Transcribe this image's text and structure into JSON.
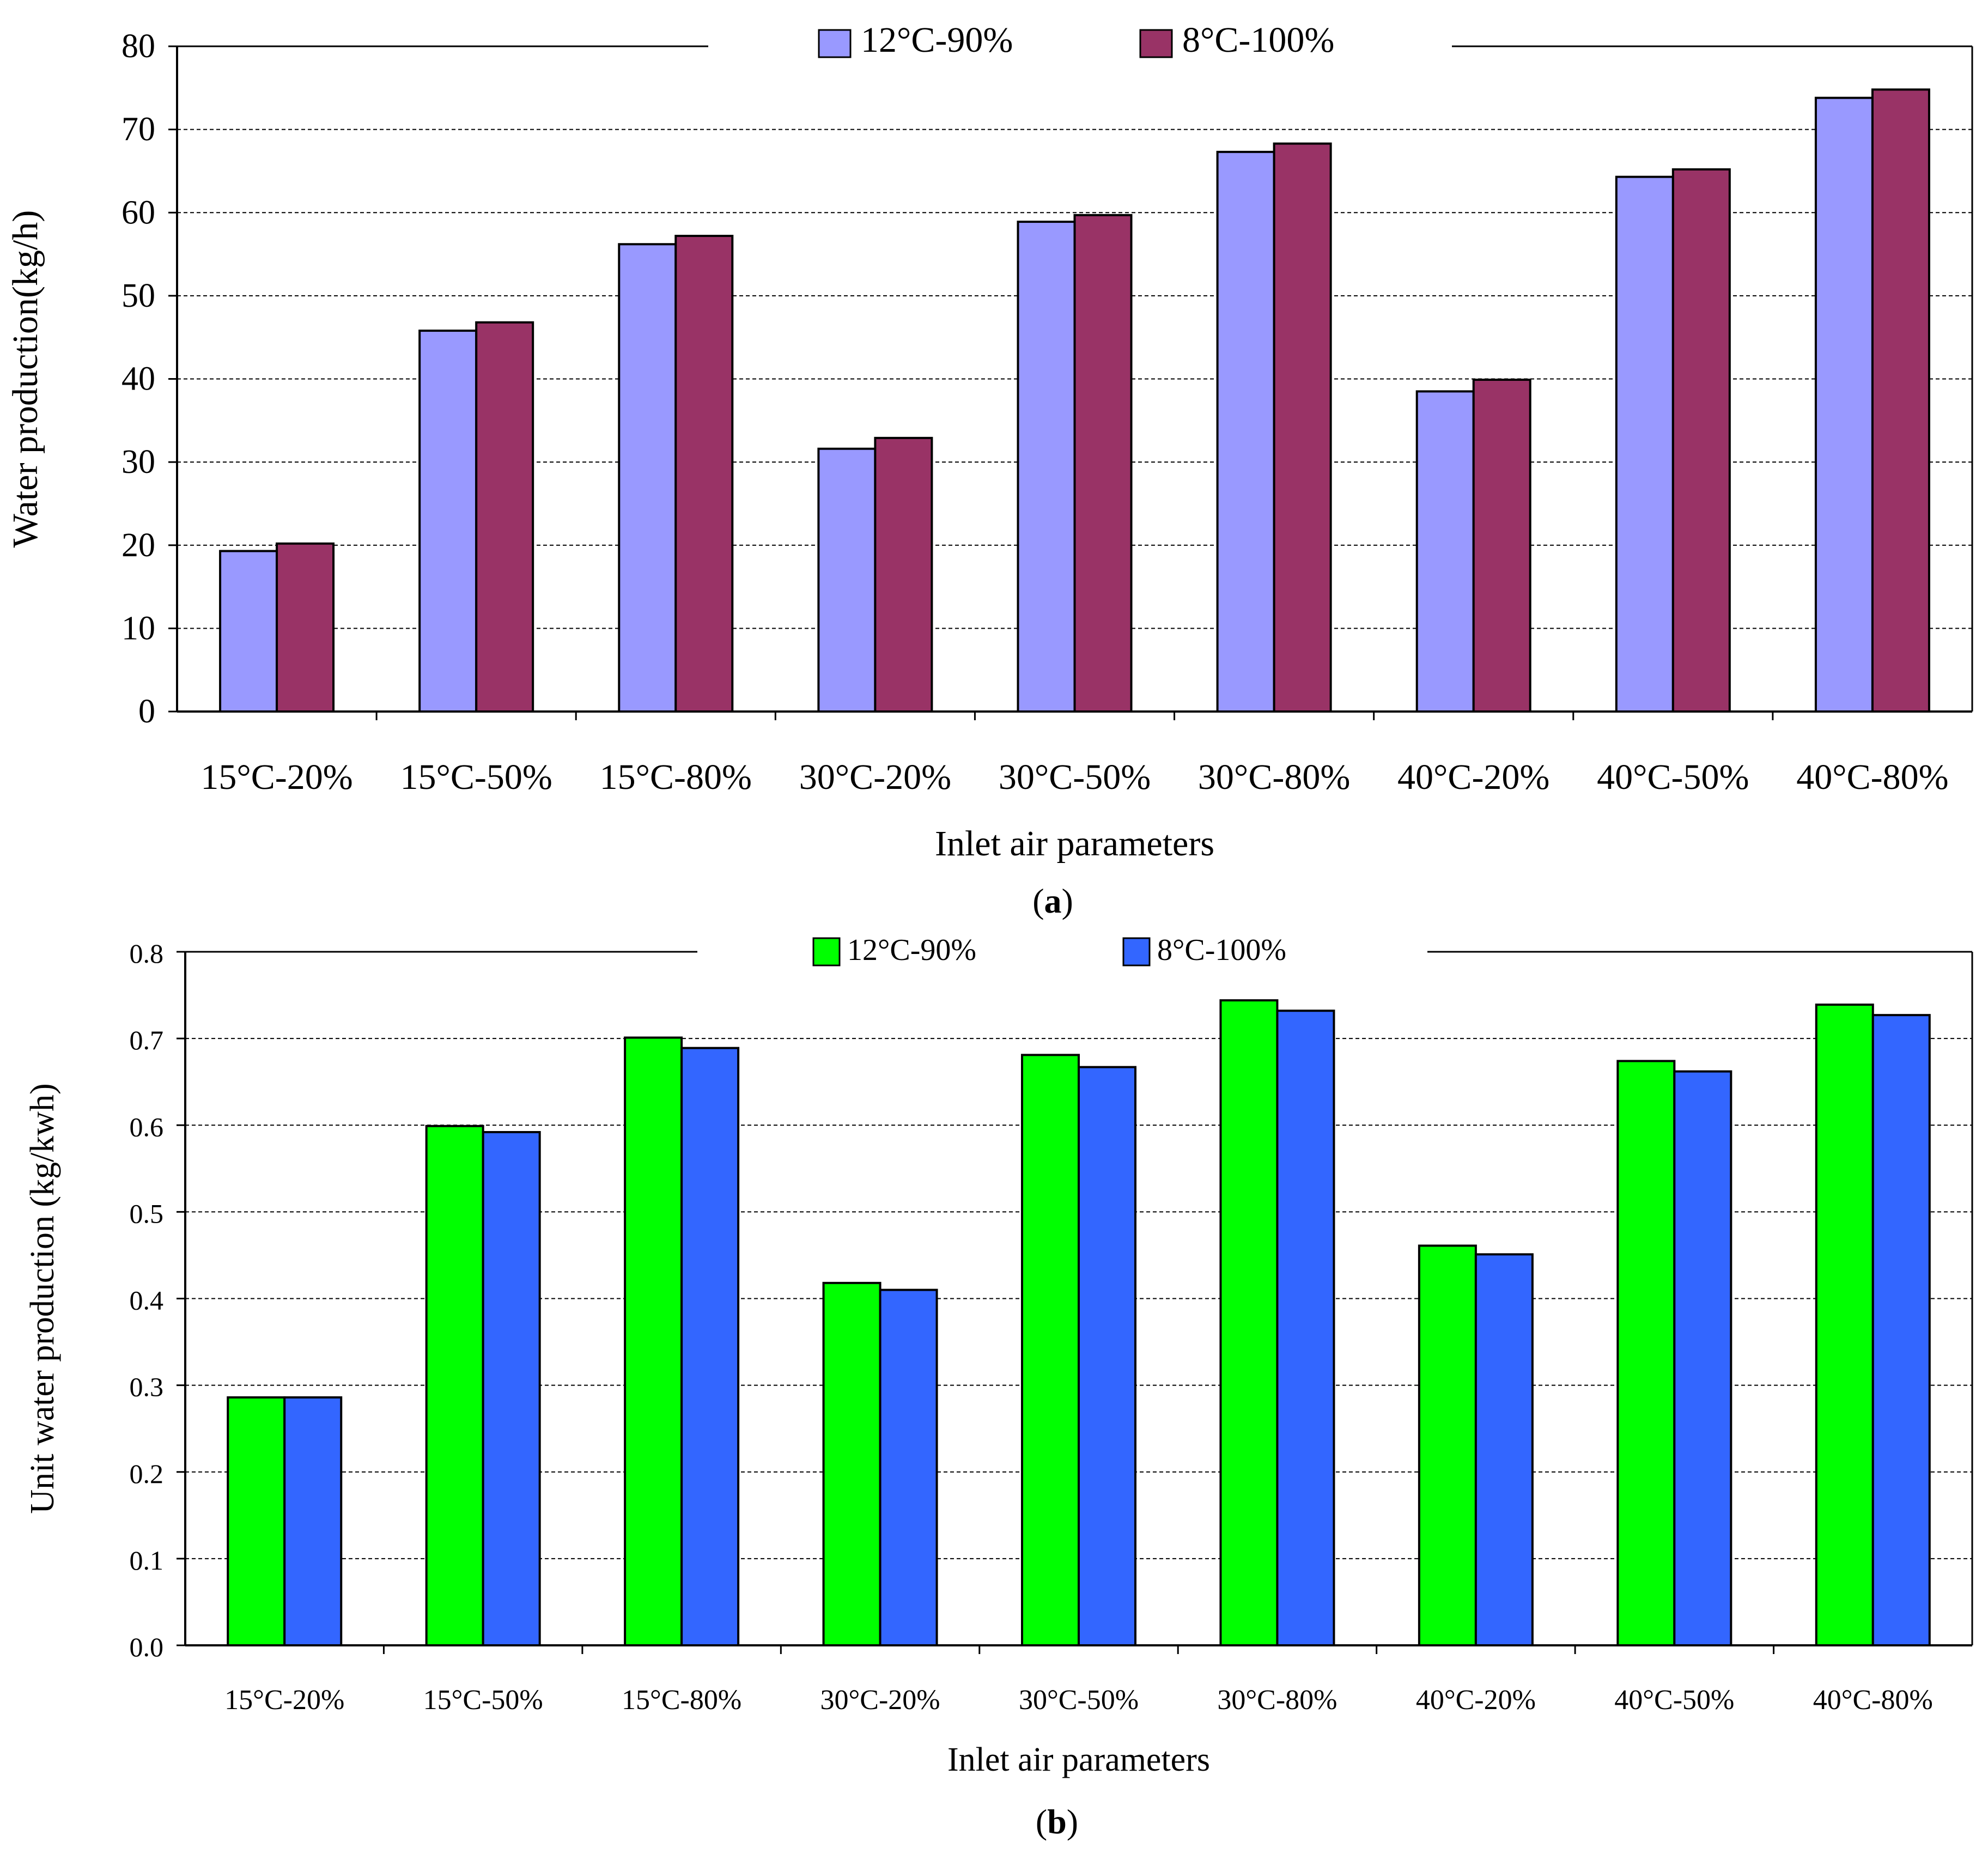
{
  "chart_data": [
    {
      "type": "bar",
      "panel_label": "(a)",
      "panel_letter": "a",
      "categories": [
        "15°C-20%",
        "15°C-50%",
        "15°C-80%",
        "30°C-20%",
        "30°C-50%",
        "30°C-80%",
        "40°C-20%",
        "40°C-50%",
        "40°C-80%"
      ],
      "series": [
        {
          "name": "12°C-90%",
          "color": "#9999ff",
          "values": [
            19.3,
            45.8,
            56.2,
            31.6,
            58.9,
            67.3,
            38.5,
            64.3,
            73.8
          ]
        },
        {
          "name": "8°C-100%",
          "color": "#993366",
          "values": [
            20.2,
            46.8,
            57.2,
            32.9,
            59.7,
            68.3,
            39.9,
            65.2,
            74.8
          ]
        }
      ],
      "xlabel": "Inlet air parameters",
      "ylabel": "Water production(kg/h)",
      "ylim": [
        0,
        80
      ],
      "yticks": [
        "0",
        "10",
        "20",
        "30",
        "40",
        "50",
        "60",
        "70",
        "80"
      ],
      "grid": true,
      "legend_position": "top-center"
    },
    {
      "type": "bar",
      "panel_label": "(b)",
      "panel_letter": "b",
      "categories": [
        "15°C-20%",
        "15°C-50%",
        "15°C-80%",
        "30°C-20%",
        "30°C-50%",
        "30°C-80%",
        "40°C-20%",
        "40°C-50%",
        "40°C-80%"
      ],
      "series": [
        {
          "name": "12°C-90%",
          "color": "#00ff00",
          "values": [
            0.286,
            0.599,
            0.701,
            0.418,
            0.681,
            0.744,
            0.461,
            0.674,
            0.739
          ]
        },
        {
          "name": "8°C-100%",
          "color": "#3366ff",
          "values": [
            0.286,
            0.592,
            0.689,
            0.41,
            0.667,
            0.732,
            0.451,
            0.662,
            0.727
          ]
        }
      ],
      "xlabel": "Inlet air parameters",
      "ylabel": "Unit water production (kg/kwh)",
      "ylim": [
        0,
        0.8
      ],
      "yticks": [
        "0.0",
        "0.1",
        "0.2",
        "0.3",
        "0.4",
        "0.5",
        "0.6",
        "0.7",
        "0.8"
      ],
      "grid": true,
      "legend_position": "top-center"
    }
  ]
}
